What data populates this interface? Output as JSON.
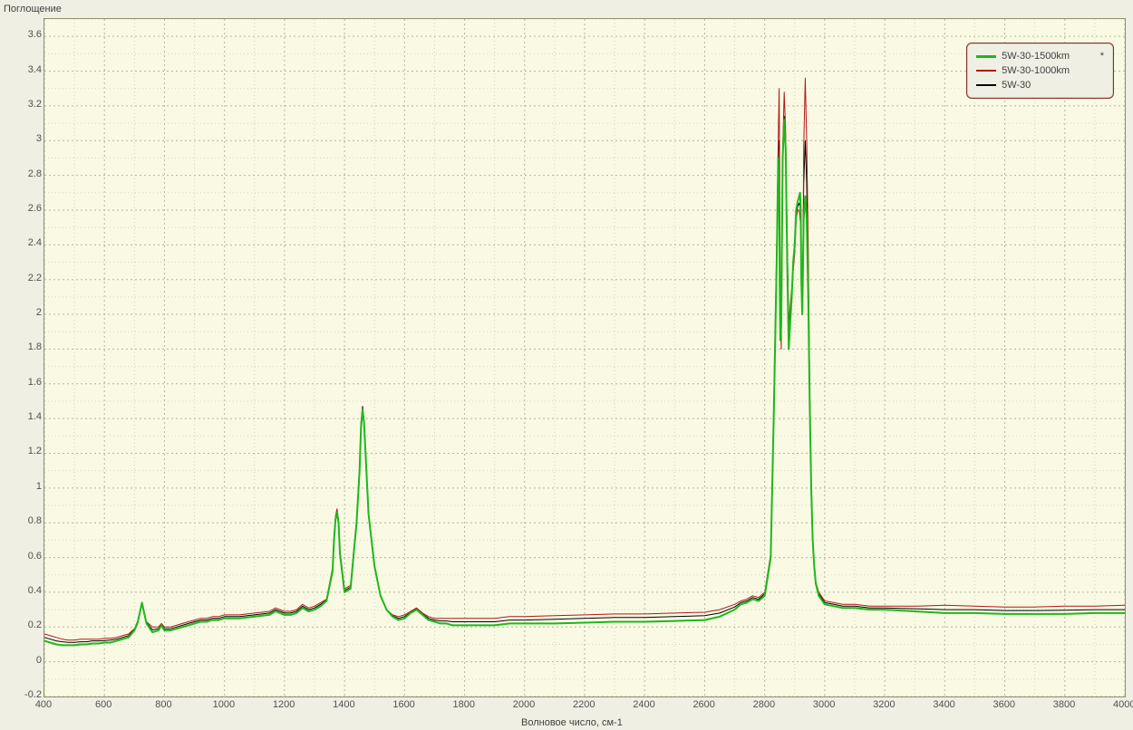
{
  "chart": {
    "type": "line",
    "ylabel": "Поглощение",
    "xlabel": "Волновое число, см-1",
    "background_color": "#f9f9e4",
    "page_background": "#f0efe3",
    "border_color": "#8e8e6f",
    "grid_color_major": "#b7b79e",
    "grid_color_minor": "#d4d4bf",
    "xlim": [
      400,
      4000
    ],
    "ylim": [
      -0.2,
      3.7
    ],
    "xticks_major": [
      400,
      600,
      800,
      1000,
      1200,
      1400,
      1600,
      1800,
      2000,
      2200,
      2400,
      2600,
      2800,
      3000,
      3200,
      3400,
      3600,
      3800,
      4000
    ],
    "yticks_major": [
      -0.2,
      0,
      0.2,
      0.4,
      0.6,
      0.8,
      1.0,
      1.2,
      1.4,
      1.6,
      1.8,
      2.0,
      2.2,
      2.4,
      2.6,
      2.8,
      3.0,
      3.2,
      3.4,
      3.6
    ],
    "xtick_minor_step": 100,
    "ytick_minor_step": 0.1,
    "tick_fontsize": 11,
    "label_fontsize": 11,
    "line_width_primary": 2.0,
    "line_width_secondary": 1.0,
    "legend": {
      "position": "top-right",
      "border_color": "#8a2a2a",
      "background": "#f0efe3",
      "items": [
        "5W-30-1500km",
        "5W-30-1000km",
        "5W-30"
      ],
      "marker": "*"
    },
    "series": [
      {
        "name": "5W-30-1500km",
        "color": "#1db81d",
        "width": 2.0,
        "x": [
          400,
          420,
          440,
          460,
          480,
          500,
          520,
          540,
          560,
          580,
          600,
          620,
          640,
          660,
          680,
          700,
          710,
          720,
          725,
          730,
          740,
          760,
          780,
          790,
          800,
          820,
          840,
          860,
          880,
          900,
          920,
          940,
          960,
          980,
          1000,
          1050,
          1100,
          1150,
          1170,
          1200,
          1220,
          1240,
          1260,
          1280,
          1300,
          1320,
          1340,
          1360,
          1365,
          1370,
          1375,
          1380,
          1385,
          1400,
          1420,
          1440,
          1450,
          1455,
          1460,
          1465,
          1470,
          1480,
          1500,
          1520,
          1540,
          1560,
          1580,
          1600,
          1620,
          1640,
          1660,
          1680,
          1700,
          1720,
          1740,
          1760,
          1780,
          1800,
          1850,
          1900,
          1950,
          2000,
          2100,
          2200,
          2300,
          2400,
          2500,
          2600,
          2650,
          2700,
          2720,
          2740,
          2760,
          2780,
          2800,
          2820,
          2830,
          2840,
          2845,
          2848,
          2850,
          2852,
          2855,
          2858,
          2860,
          2865,
          2870,
          2875,
          2880,
          2885,
          2890,
          2895,
          2900,
          2905,
          2910,
          2915,
          2918,
          2920,
          2922,
          2925,
          2928,
          2930,
          2935,
          2940,
          2945,
          2950,
          2955,
          2960,
          2965,
          2970,
          2980,
          3000,
          3030,
          3060,
          3100,
          3150,
          3200,
          3300,
          3400,
          3500,
          3600,
          3700,
          3800,
          3900,
          4000
        ],
        "y": [
          0.12,
          0.11,
          0.1,
          0.095,
          0.095,
          0.095,
          0.1,
          0.1,
          0.105,
          0.105,
          0.11,
          0.11,
          0.12,
          0.13,
          0.14,
          0.18,
          0.22,
          0.3,
          0.34,
          0.3,
          0.22,
          0.17,
          0.18,
          0.21,
          0.18,
          0.18,
          0.19,
          0.2,
          0.21,
          0.22,
          0.23,
          0.23,
          0.24,
          0.24,
          0.25,
          0.25,
          0.26,
          0.27,
          0.29,
          0.27,
          0.27,
          0.28,
          0.31,
          0.29,
          0.3,
          0.32,
          0.35,
          0.52,
          0.7,
          0.82,
          0.86,
          0.8,
          0.62,
          0.4,
          0.42,
          0.8,
          1.1,
          1.35,
          1.45,
          1.38,
          1.2,
          0.85,
          0.55,
          0.38,
          0.3,
          0.26,
          0.24,
          0.25,
          0.28,
          0.3,
          0.27,
          0.24,
          0.23,
          0.22,
          0.22,
          0.21,
          0.21,
          0.21,
          0.21,
          0.21,
          0.22,
          0.22,
          0.22,
          0.225,
          0.23,
          0.23,
          0.235,
          0.24,
          0.26,
          0.3,
          0.33,
          0.34,
          0.36,
          0.35,
          0.38,
          0.6,
          1.4,
          2.3,
          2.9,
          2.7,
          2.2,
          1.85,
          1.95,
          2.55,
          2.9,
          3.12,
          2.95,
          2.3,
          1.8,
          1.95,
          2.1,
          2.3,
          2.4,
          2.6,
          2.65,
          2.68,
          2.7,
          2.6,
          2.2,
          2.0,
          2.3,
          2.55,
          2.68,
          2.55,
          2.1,
          1.5,
          1.0,
          0.7,
          0.55,
          0.45,
          0.38,
          0.33,
          0.32,
          0.31,
          0.31,
          0.3,
          0.3,
          0.29,
          0.28,
          0.28,
          0.275,
          0.275,
          0.275,
          0.28,
          0.28
        ]
      },
      {
        "name": "5W-30-1000km",
        "color": "#b01818",
        "width": 1.0,
        "x": [
          400,
          420,
          440,
          460,
          480,
          500,
          520,
          540,
          560,
          580,
          600,
          620,
          640,
          660,
          680,
          700,
          710,
          720,
          725,
          730,
          740,
          760,
          780,
          790,
          800,
          820,
          840,
          860,
          880,
          900,
          920,
          940,
          960,
          980,
          1000,
          1050,
          1100,
          1150,
          1170,
          1200,
          1220,
          1240,
          1260,
          1280,
          1300,
          1320,
          1340,
          1360,
          1365,
          1370,
          1375,
          1380,
          1385,
          1400,
          1420,
          1440,
          1450,
          1455,
          1460,
          1465,
          1470,
          1480,
          1500,
          1520,
          1540,
          1560,
          1580,
          1600,
          1620,
          1640,
          1660,
          1680,
          1700,
          1720,
          1740,
          1760,
          1780,
          1800,
          1850,
          1900,
          1950,
          2000,
          2100,
          2200,
          2300,
          2400,
          2500,
          2600,
          2650,
          2700,
          2720,
          2740,
          2760,
          2780,
          2800,
          2820,
          2830,
          2840,
          2845,
          2848,
          2850,
          2852,
          2855,
          2858,
          2860,
          2865,
          2870,
          2875,
          2880,
          2885,
          2890,
          2895,
          2900,
          2905,
          2910,
          2915,
          2918,
          2920,
          2922,
          2925,
          2928,
          2930,
          2935,
          2940,
          2945,
          2950,
          2955,
          2960,
          2965,
          2970,
          2980,
          3000,
          3030,
          3060,
          3100,
          3150,
          3200,
          3300,
          3400,
          3500,
          3600,
          3700,
          3800,
          3900,
          4000
        ],
        "y": [
          0.16,
          0.15,
          0.14,
          0.13,
          0.125,
          0.125,
          0.13,
          0.13,
          0.13,
          0.13,
          0.135,
          0.135,
          0.14,
          0.15,
          0.16,
          0.19,
          0.23,
          0.3,
          0.33,
          0.29,
          0.23,
          0.2,
          0.2,
          0.22,
          0.2,
          0.2,
          0.21,
          0.22,
          0.23,
          0.24,
          0.25,
          0.25,
          0.26,
          0.26,
          0.27,
          0.27,
          0.28,
          0.29,
          0.31,
          0.29,
          0.29,
          0.3,
          0.33,
          0.31,
          0.32,
          0.34,
          0.36,
          0.54,
          0.72,
          0.84,
          0.88,
          0.82,
          0.64,
          0.42,
          0.44,
          0.82,
          1.12,
          1.36,
          1.46,
          1.38,
          1.2,
          0.85,
          0.55,
          0.38,
          0.3,
          0.27,
          0.26,
          0.27,
          0.29,
          0.31,
          0.28,
          0.26,
          0.25,
          0.25,
          0.25,
          0.25,
          0.25,
          0.25,
          0.25,
          0.25,
          0.26,
          0.26,
          0.265,
          0.27,
          0.275,
          0.275,
          0.28,
          0.285,
          0.3,
          0.33,
          0.35,
          0.36,
          0.38,
          0.37,
          0.4,
          0.62,
          1.45,
          2.4,
          3.0,
          3.3,
          2.8,
          2.1,
          1.8,
          2.3,
          2.95,
          3.28,
          3.05,
          2.45,
          1.95,
          2.05,
          2.15,
          2.25,
          2.35,
          2.55,
          2.6,
          2.6,
          2.55,
          2.5,
          2.3,
          2.15,
          2.4,
          2.95,
          3.36,
          3.0,
          2.4,
          1.6,
          1.05,
          0.7,
          0.55,
          0.46,
          0.4,
          0.35,
          0.34,
          0.33,
          0.33,
          0.32,
          0.32,
          0.32,
          0.325,
          0.32,
          0.315,
          0.315,
          0.32,
          0.32,
          0.325
        ]
      },
      {
        "name": "5W-30",
        "color": "#000000",
        "width": 1.0,
        "x": [
          400,
          420,
          440,
          460,
          480,
          500,
          520,
          540,
          560,
          580,
          600,
          620,
          640,
          660,
          680,
          700,
          710,
          720,
          725,
          730,
          740,
          760,
          780,
          790,
          800,
          820,
          840,
          860,
          880,
          900,
          920,
          940,
          960,
          980,
          1000,
          1050,
          1100,
          1150,
          1170,
          1200,
          1220,
          1240,
          1260,
          1280,
          1300,
          1320,
          1340,
          1360,
          1365,
          1370,
          1375,
          1380,
          1385,
          1400,
          1420,
          1440,
          1450,
          1455,
          1460,
          1465,
          1470,
          1480,
          1500,
          1520,
          1540,
          1560,
          1580,
          1600,
          1620,
          1640,
          1660,
          1680,
          1700,
          1720,
          1740,
          1760,
          1780,
          1800,
          1850,
          1900,
          1950,
          2000,
          2100,
          2200,
          2300,
          2400,
          2500,
          2600,
          2650,
          2700,
          2720,
          2740,
          2760,
          2780,
          2800,
          2820,
          2830,
          2840,
          2845,
          2848,
          2850,
          2852,
          2855,
          2858,
          2860,
          2865,
          2870,
          2875,
          2880,
          2885,
          2890,
          2895,
          2900,
          2905,
          2910,
          2915,
          2918,
          2920,
          2922,
          2925,
          2928,
          2930,
          2935,
          2940,
          2945,
          2950,
          2955,
          2960,
          2965,
          2970,
          2980,
          3000,
          3030,
          3060,
          3100,
          3150,
          3200,
          3300,
          3400,
          3500,
          3600,
          3700,
          3800,
          3900,
          4000
        ],
        "y": [
          0.14,
          0.13,
          0.12,
          0.115,
          0.112,
          0.112,
          0.115,
          0.115,
          0.12,
          0.12,
          0.122,
          0.125,
          0.13,
          0.14,
          0.15,
          0.185,
          0.22,
          0.3,
          0.335,
          0.295,
          0.225,
          0.185,
          0.19,
          0.215,
          0.19,
          0.19,
          0.2,
          0.21,
          0.22,
          0.23,
          0.24,
          0.24,
          0.25,
          0.25,
          0.26,
          0.26,
          0.27,
          0.28,
          0.3,
          0.28,
          0.28,
          0.29,
          0.32,
          0.3,
          0.31,
          0.33,
          0.355,
          0.53,
          0.71,
          0.83,
          0.87,
          0.81,
          0.63,
          0.41,
          0.43,
          0.81,
          1.12,
          1.38,
          1.47,
          1.39,
          1.2,
          0.85,
          0.55,
          0.38,
          0.3,
          0.265,
          0.25,
          0.26,
          0.285,
          0.305,
          0.275,
          0.25,
          0.24,
          0.235,
          0.235,
          0.23,
          0.23,
          0.23,
          0.23,
          0.23,
          0.24,
          0.24,
          0.245,
          0.25,
          0.255,
          0.255,
          0.26,
          0.265,
          0.28,
          0.315,
          0.34,
          0.35,
          0.37,
          0.36,
          0.39,
          0.61,
          1.42,
          2.35,
          2.95,
          3.0,
          2.5,
          1.95,
          1.87,
          2.4,
          2.92,
          3.14,
          2.98,
          2.38,
          1.88,
          2.0,
          2.12,
          2.27,
          2.37,
          2.57,
          2.62,
          2.64,
          2.62,
          2.55,
          2.25,
          2.08,
          2.35,
          2.75,
          3.0,
          2.75,
          2.25,
          1.55,
          1.02,
          0.7,
          0.55,
          0.455,
          0.39,
          0.34,
          0.33,
          0.32,
          0.32,
          0.31,
          0.31,
          0.305,
          0.3,
          0.3,
          0.295,
          0.295,
          0.297,
          0.3,
          0.3
        ]
      }
    ]
  }
}
